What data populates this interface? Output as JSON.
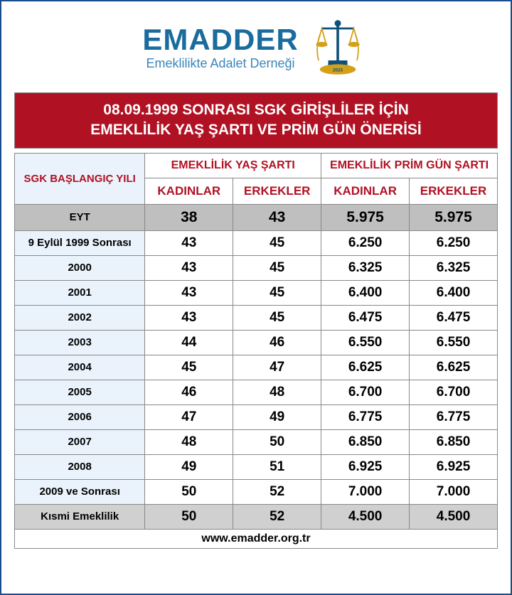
{
  "logo": {
    "title": "EMADDER",
    "subtitle": "Emeklilikte Adalet Derneği",
    "year": "2023"
  },
  "titleLine1": "08.09.1999 SONRASI SGK GİRİŞLİLER İÇİN",
  "titleLine2": "EMEKLİLİK YAŞ ŞARTI VE PRİM GÜN ÖNERİSİ",
  "headers": {
    "col0": "SGK BAŞLANGIÇ YILI",
    "group1": "EMEKLİLİK YAŞ ŞARTI",
    "group2": "EMEKLİLİK PRİM GÜN ŞARTI",
    "women": "KADINLAR",
    "men": "ERKEKLER"
  },
  "rows": [
    {
      "label": "EYT",
      "ageW": "38",
      "ageM": "43",
      "primW": "5.975",
      "primM": "5.975",
      "class": "row-eyt"
    },
    {
      "label": "9 Eylül 1999 Sonrası",
      "ageW": "43",
      "ageM": "45",
      "primW": "6.250",
      "primM": "6.250",
      "class": ""
    },
    {
      "label": "2000",
      "ageW": "43",
      "ageM": "45",
      "primW": "6.325",
      "primM": "6.325",
      "class": ""
    },
    {
      "label": "2001",
      "ageW": "43",
      "ageM": "45",
      "primW": "6.400",
      "primM": "6.400",
      "class": ""
    },
    {
      "label": "2002",
      "ageW": "43",
      "ageM": "45",
      "primW": "6.475",
      "primM": "6.475",
      "class": ""
    },
    {
      "label": "2003",
      "ageW": "44",
      "ageM": "46",
      "primW": "6.550",
      "primM": "6.550",
      "class": ""
    },
    {
      "label": "2004",
      "ageW": "45",
      "ageM": "47",
      "primW": "6.625",
      "primM": "6.625",
      "class": ""
    },
    {
      "label": "2005",
      "ageW": "46",
      "ageM": "48",
      "primW": "6.700",
      "primM": "6.700",
      "class": ""
    },
    {
      "label": "2006",
      "ageW": "47",
      "ageM": "49",
      "primW": "6.775",
      "primM": "6.775",
      "class": ""
    },
    {
      "label": "2007",
      "ageW": "48",
      "ageM": "50",
      "primW": "6.850",
      "primM": "6.850",
      "class": ""
    },
    {
      "label": "2008",
      "ageW": "49",
      "ageM": "51",
      "primW": "6.925",
      "primM": "6.925",
      "class": ""
    },
    {
      "label": "2009 ve Sonrası",
      "ageW": "50",
      "ageM": "52",
      "primW": "7.000",
      "primM": "7.000",
      "class": ""
    },
    {
      "label": "Kısmi Emeklilik",
      "ageW": "50",
      "ageM": "52",
      "primW": "4.500",
      "primM": "4.500",
      "class": "row-kismi"
    }
  ],
  "footer": "www.emadder.org.tr",
  "colors": {
    "titleBg": "#b01224",
    "border": "#1a4d8f",
    "logoBlue": "#1a6b9e",
    "headerBlueLight": "#eaf3fb",
    "grayEyt": "#bfbfbf",
    "grayKismi": "#d0d0d0"
  }
}
